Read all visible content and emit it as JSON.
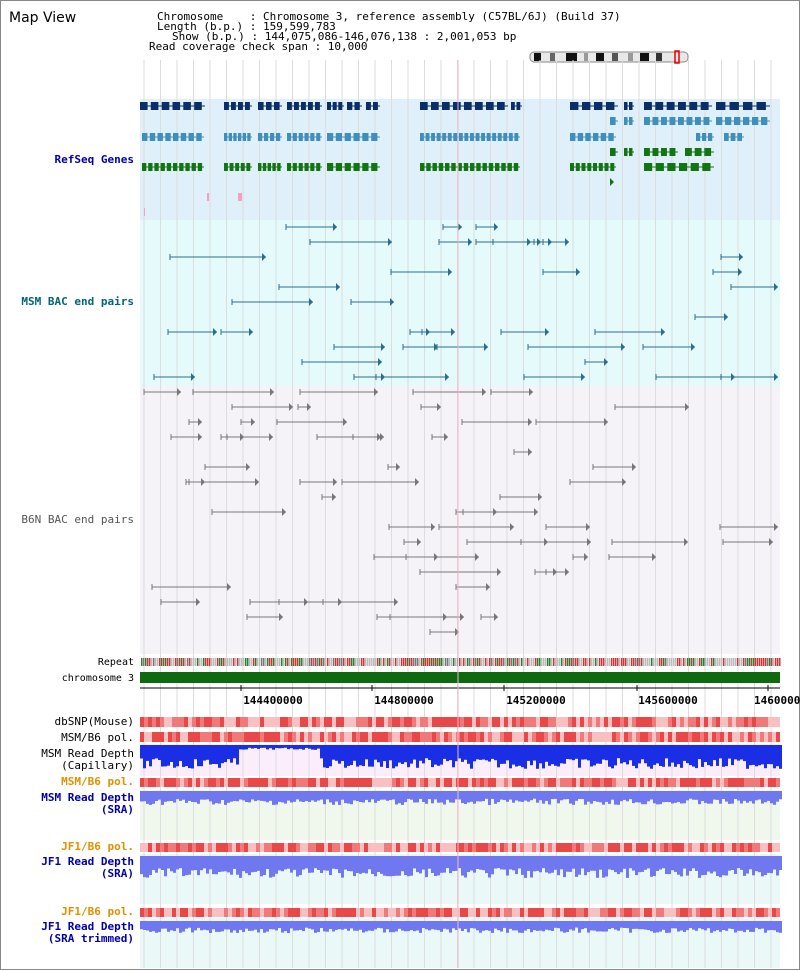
{
  "header": {
    "title": "Map View",
    "chromosome": "Chromosome    : Chromosome 3, reference assembly (C57BL/6J) (Build 37)",
    "length": "Length (b.p.) : 159,599,783",
    "show": "Show (b.p.) : 144,075,086-146,076,138 : 2,001,053 bp",
    "read_coverage": "Read coverage check span : 10,000"
  },
  "tracks": {
    "refseq": "RefSeq Genes",
    "msm_bac": "MSM BAC end pairs",
    "b6n_bac": "B6N BAC end pairs",
    "repeat": "Repeat",
    "chromosome": "chromosome 3",
    "dbsnp": "dbSNP(Mouse)",
    "msm_b6_pol_1": "MSM/B6 pol.",
    "msm_read_depth_cap_1": "MSM Read Depth",
    "msm_read_depth_cap_2": "(Capillary)",
    "msm_b6_pol_2": "MSM/B6 pol.",
    "msm_read_depth_sra_1": "MSM Read Depth",
    "msm_read_depth_sra_2": "(SRA)",
    "jf1_b6_pol_1": "JF1/B6 pol.",
    "jf1_read_depth_sra_1": "JF1 Read Depth",
    "jf1_read_depth_sra_2": "(SRA)",
    "jf1_b6_pol_2": "JF1/B6 pol.",
    "jf1_read_depth_trim_1": "JF1 Read Depth",
    "jf1_read_depth_trim_2": "(SRA trimmed)"
  },
  "axis": {
    "ticks": [
      "144400000",
      "144800000",
      "145200000",
      "145600000",
      "1460000"
    ]
  },
  "colors": {
    "refseq_bg": "#dff0fa",
    "msm_bg": "#e5fbfb",
    "b6n_bg": "#f5f3f8",
    "gene_dark": "#0a2e6a",
    "gene_mid": "#3f8fbe",
    "gene_green": "#127512",
    "chromosome_bar": "#0f6a0f",
    "msm_line": "#2a6f8f",
    "b6n_line": "#777777",
    "pol_red": "#e84848",
    "depth_blue": "#1a2ee6",
    "depth_lavender": "#6f78ee"
  }
}
